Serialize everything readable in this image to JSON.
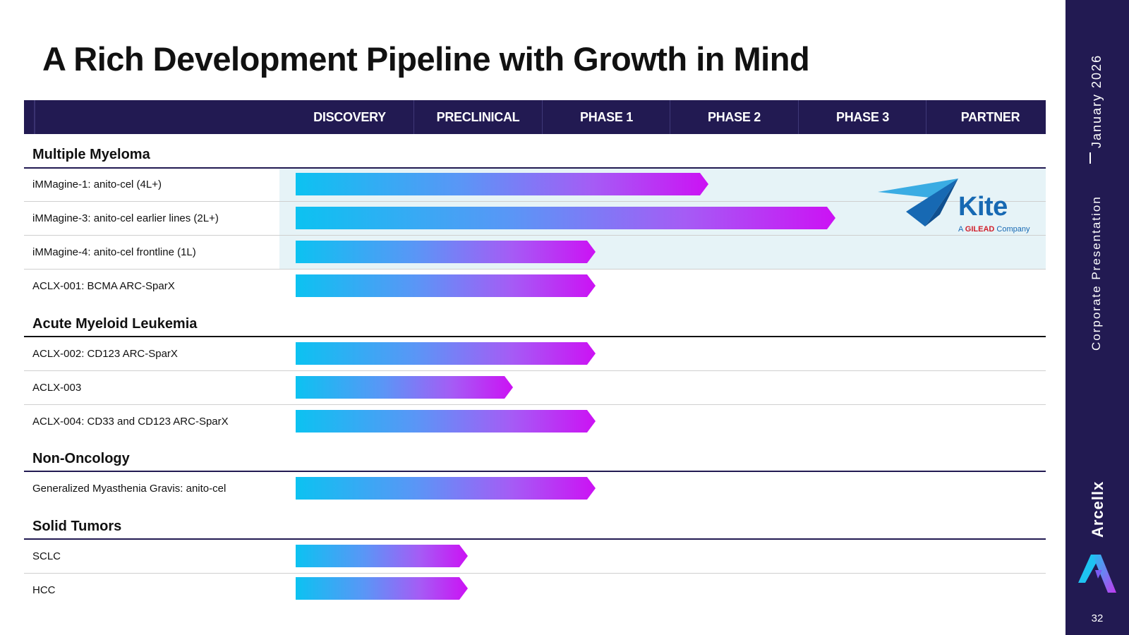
{
  "title": "A Rich Development Pipeline with Growth in Mind",
  "columns": [
    "DISCOVERY",
    "PRECLINICAL",
    "PHASE 1",
    "PHASE 2",
    "PHASE 3",
    "PARTNER"
  ],
  "sections": [
    {
      "name": "Multiple Myeloma",
      "programs": [
        {
          "label": "iMMagine-1: anito-cel (4L+)",
          "stage": "PHASE 2",
          "progress": 0.55
        },
        {
          "label": "iMMagine-3: anito-cel earlier lines (2L+)",
          "stage": "PHASE 3",
          "progress": 0.72
        },
        {
          "label": "iMMagine-4: anito-cel frontline (1L)",
          "stage": "PHASE 1",
          "progress": 0.4
        },
        {
          "label": "ACLX-001: BCMA ARC-SparX",
          "stage": "PHASE 1",
          "progress": 0.4
        }
      ]
    },
    {
      "name": "Acute Myeloid Leukemia",
      "programs": [
        {
          "label": "ACLX-002: CD123 ARC-SparX",
          "stage": "PHASE 1",
          "progress": 0.4
        },
        {
          "label": "ACLX-003",
          "stage": "PRECLINICAL",
          "progress": 0.29
        },
        {
          "label": "ACLX-004: CD33 and CD123 ARC-SparX",
          "stage": "PHASE 1",
          "progress": 0.4
        }
      ]
    },
    {
      "name": "Non-Oncology",
      "programs": [
        {
          "label": "Generalized Myasthenia Gravis: anito-cel",
          "stage": "PHASE 1",
          "progress": 0.4
        }
      ]
    },
    {
      "name": "Solid Tumors",
      "programs": [
        {
          "label": "SCLC",
          "stage": "PRECLINICAL",
          "progress": 0.23
        },
        {
          "label": "HCC",
          "stage": "PRECLINICAL",
          "progress": 0.23
        }
      ]
    }
  ],
  "partner": {
    "name": "Kite",
    "tagline_prefix": "A",
    "tagline_brand": "GILEAD",
    "tagline_suffix": "Company"
  },
  "sidebar": {
    "date": "January 2026",
    "subtitle": "Corporate Presentation",
    "brand": "Arcellx",
    "page_number": "32"
  },
  "colors": {
    "navy": "#221a52",
    "bar_start": "#0cc2f1",
    "bar_end": "#cc12f4",
    "partner_bg": "#e6f3f7",
    "kite_blue": "#1769b3",
    "gilead_red": "#d11f2b"
  }
}
